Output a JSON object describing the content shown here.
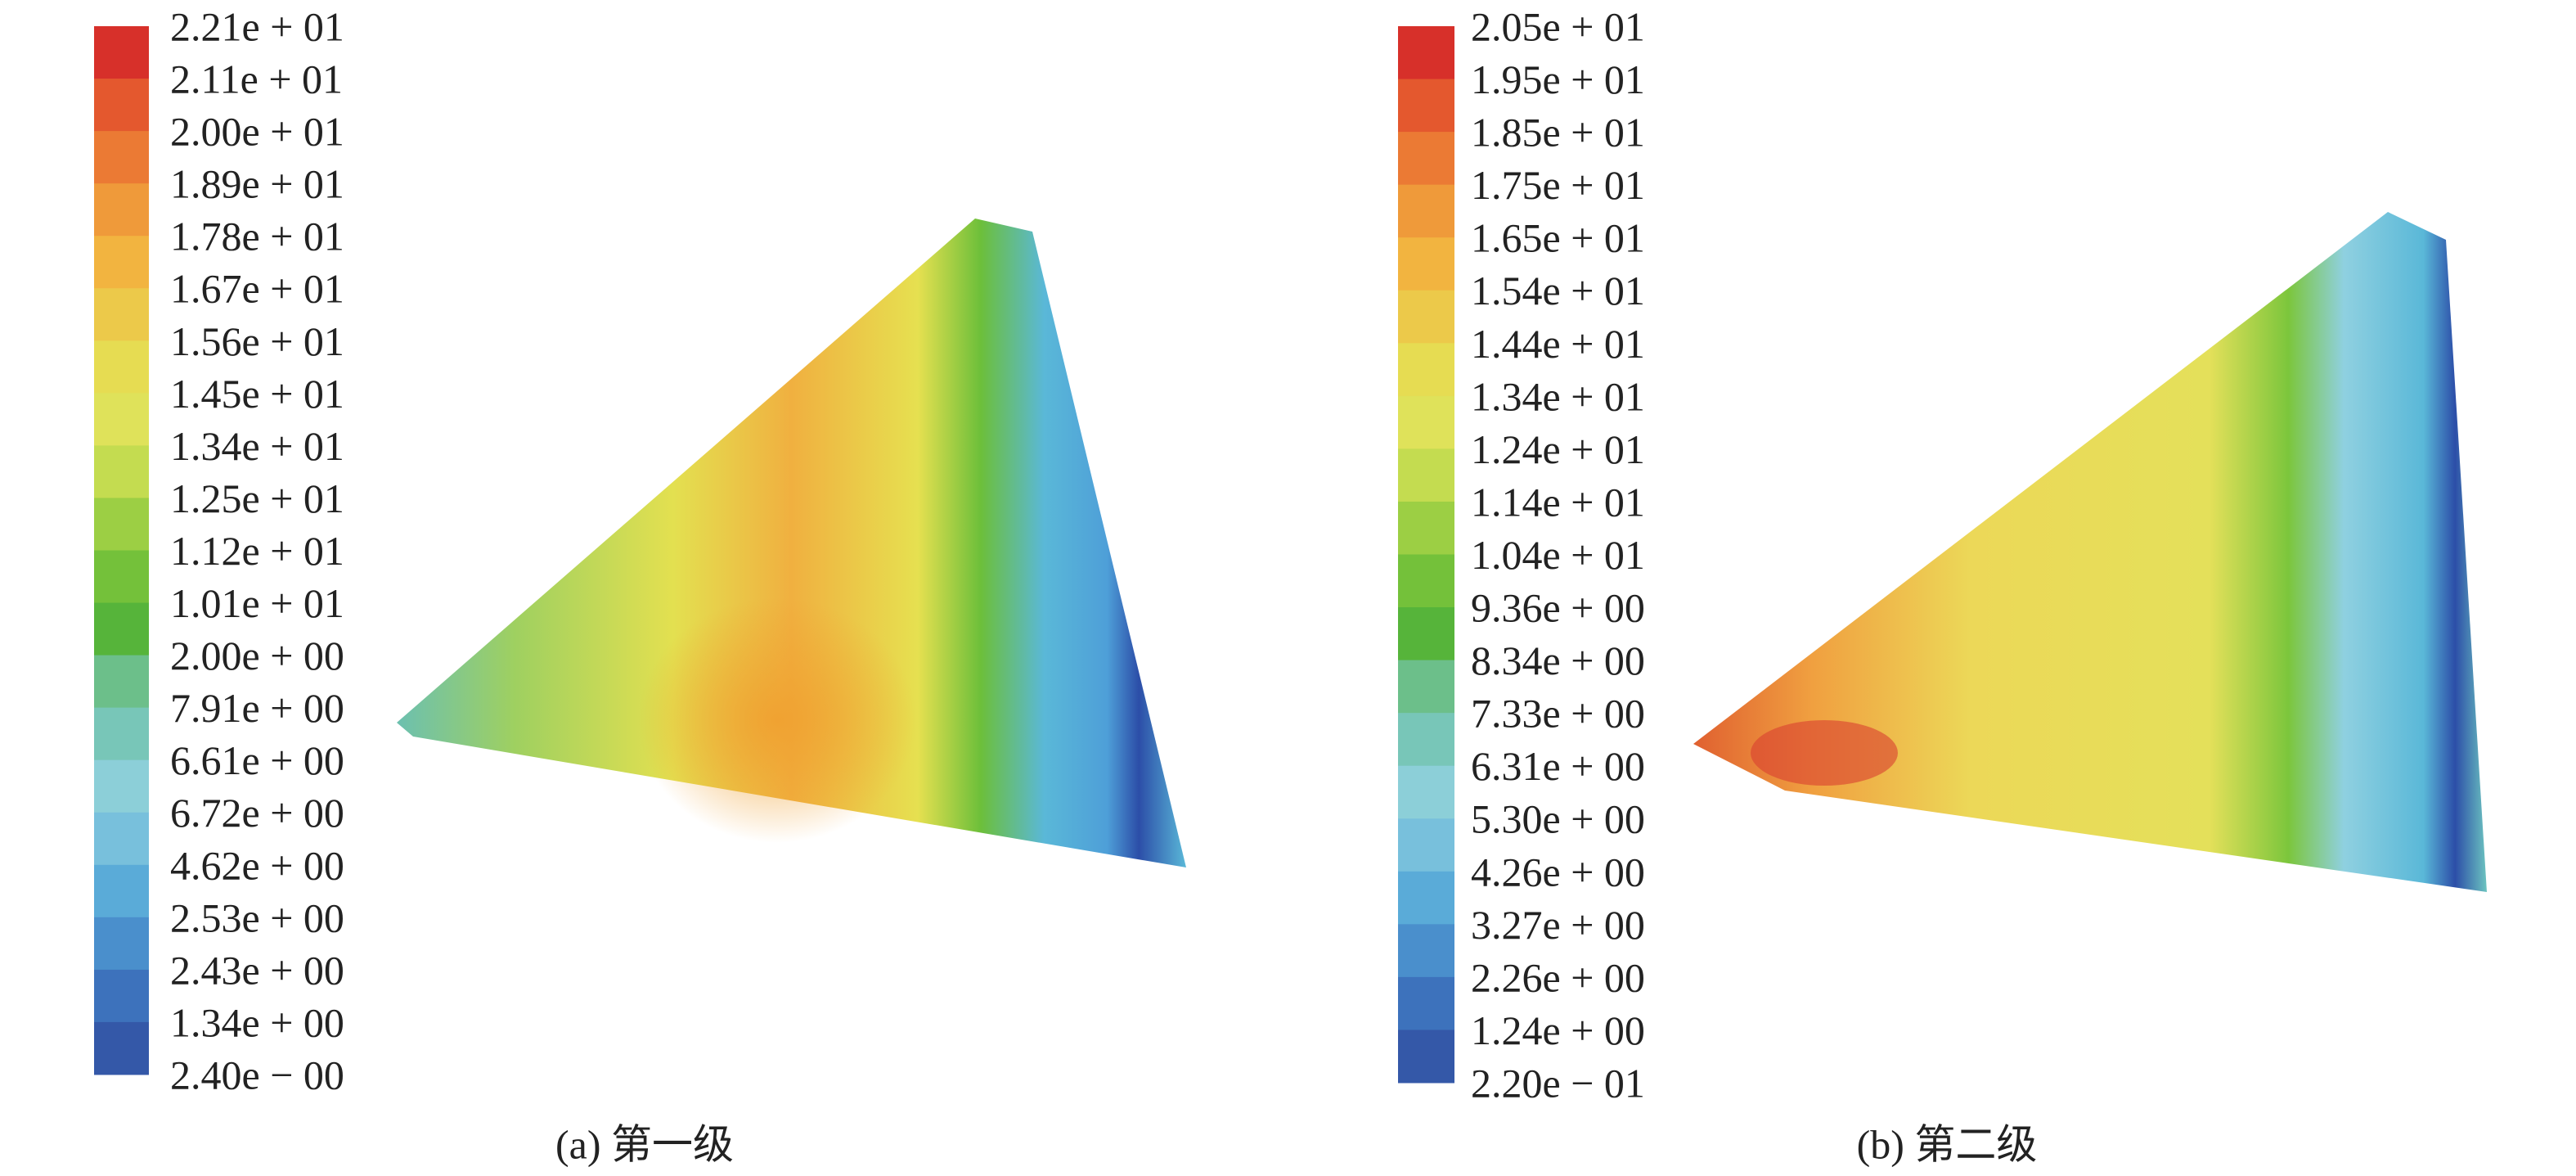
{
  "panels": [
    {
      "legend_labels": [
        "2.21e + 01",
        "2.11e + 01",
        "2.00e + 01",
        "1.89e + 01",
        "1.78e + 01",
        "1.67e + 01",
        "1.56e + 01",
        "1.45e + 01",
        "1.34e + 01",
        "1.25e + 01",
        "1.12e + 01",
        "1.01e + 01",
        "2.00e + 00",
        "7.91e + 00",
        "6.61e + 00",
        "6.72e + 00",
        "4.62e + 00",
        "2.53e + 00",
        "2.43e + 00",
        "1.34e + 00",
        "2.40e − 00"
      ],
      "caption": "(a) 第一级"
    },
    {
      "legend_labels": [
        "2.05e + 01",
        "1.95e + 01",
        "1.85e + 01",
        "1.75e + 01",
        "1.65e + 01",
        "1.54e + 01",
        "1.44e + 01",
        "1.34e + 01",
        "1.24e + 01",
        "1.14e + 01",
        "1.04e + 01",
        "9.36e + 00",
        "8.34e + 00",
        "7.33e + 00",
        "6.31e + 00",
        "5.30e + 00",
        "4.26e + 00",
        "3.27e + 00",
        "2.26e + 00",
        "1.24e + 00",
        "2.20e − 01"
      ],
      "caption": "(b) 第二级"
    }
  ]
}
